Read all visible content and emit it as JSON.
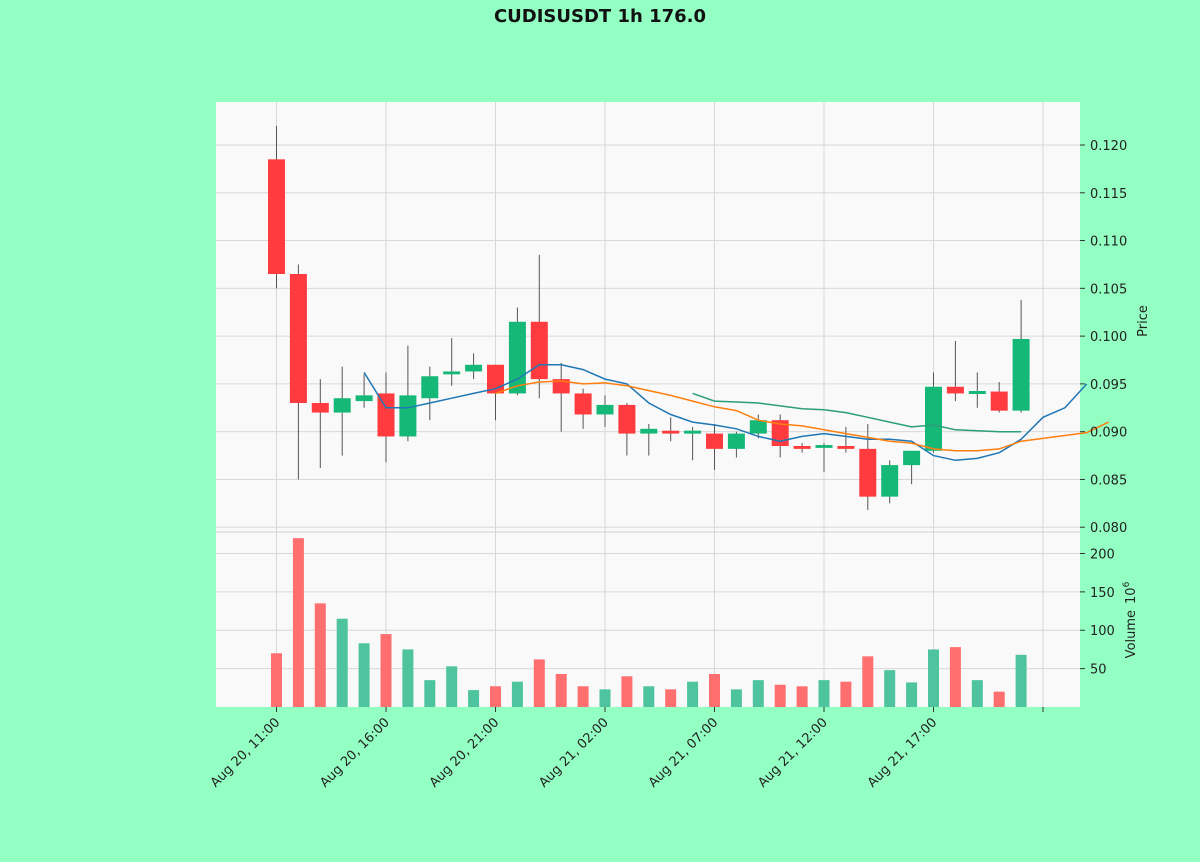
{
  "chart_data": {
    "type": "candlestick",
    "title": "CUDISUSDT 1h 176.0",
    "ylabel_price": "Price",
    "ylabel_volume": "Volume",
    "ylabel_volume_exponent": "10",
    "ylabel_volume_power": "6",
    "price_ylim": [
      0.0795,
      0.1245
    ],
    "volume_ylim": [
      0,
      228
    ],
    "price_ticks": [
      "0.080",
      "0.085",
      "0.090",
      "0.095",
      "0.100",
      "0.105",
      "0.110",
      "0.115",
      "0.120"
    ],
    "volume_ticks": [
      "50",
      "100",
      "150",
      "200"
    ],
    "x_tick_labels": [
      {
        "index": 0,
        "label": "Aug 20, 11:00"
      },
      {
        "index": 5,
        "label": "Aug 20, 16:00"
      },
      {
        "index": 10,
        "label": "Aug 20, 21:00"
      },
      {
        "index": 15,
        "label": "Aug 21, 02:00"
      },
      {
        "index": 20,
        "label": "Aug 21, 07:00"
      },
      {
        "index": 25,
        "label": "Aug 21, 12:00"
      },
      {
        "index": 30,
        "label": "Aug 21, 17:00"
      },
      {
        "index": 35,
        "label": ""
      }
    ],
    "colors": {
      "up": "#16b877",
      "down": "#ff3b3f",
      "up_volume": "#4dc49e",
      "down_volume": "#ff6f6f",
      "ma_short": "#1f77b4",
      "ma_mid": "#ff7f0e",
      "ma_long": "#2b9d7a",
      "page_bg": "#93ffc3",
      "plot_bg": "#f9f9f9",
      "grid": "#d8d8d8"
    },
    "candles": [
      {
        "o": 0.1185,
        "h": 0.122,
        "l": 0.105,
        "c": 0.1065,
        "v": 70
      },
      {
        "o": 0.1065,
        "h": 0.1075,
        "l": 0.085,
        "c": 0.093,
        "v": 220
      },
      {
        "o": 0.093,
        "h": 0.0955,
        "l": 0.0862,
        "c": 0.092,
        "v": 135
      },
      {
        "o": 0.092,
        "h": 0.0968,
        "l": 0.0875,
        "c": 0.0935,
        "v": 115
      },
      {
        "o": 0.0932,
        "h": 0.096,
        "l": 0.0925,
        "c": 0.0938,
        "v": 83
      },
      {
        "o": 0.094,
        "h": 0.0962,
        "l": 0.0868,
        "c": 0.0895,
        "v": 95
      },
      {
        "o": 0.0895,
        "h": 0.099,
        "l": 0.089,
        "c": 0.0938,
        "v": 75
      },
      {
        "o": 0.0935,
        "h": 0.0968,
        "l": 0.0912,
        "c": 0.0958,
        "v": 35
      },
      {
        "o": 0.096,
        "h": 0.0998,
        "l": 0.0948,
        "c": 0.0963,
        "v": 53
      },
      {
        "o": 0.0963,
        "h": 0.0982,
        "l": 0.0955,
        "c": 0.097,
        "v": 22
      },
      {
        "o": 0.097,
        "h": 0.097,
        "l": 0.0912,
        "c": 0.094,
        "v": 27
      },
      {
        "o": 0.094,
        "h": 0.103,
        "l": 0.0938,
        "c": 0.1015,
        "v": 33
      },
      {
        "o": 0.1015,
        "h": 0.1085,
        "l": 0.0935,
        "c": 0.0955,
        "v": 62
      },
      {
        "o": 0.0955,
        "h": 0.0972,
        "l": 0.09,
        "c": 0.094,
        "v": 43
      },
      {
        "o": 0.094,
        "h": 0.0945,
        "l": 0.0903,
        "c": 0.0918,
        "v": 27
      },
      {
        "o": 0.0918,
        "h": 0.0938,
        "l": 0.0905,
        "c": 0.0928,
        "v": 23
      },
      {
        "o": 0.0928,
        "h": 0.093,
        "l": 0.0875,
        "c": 0.0898,
        "v": 40
      },
      {
        "o": 0.0898,
        "h": 0.0908,
        "l": 0.0875,
        "c": 0.0903,
        "v": 27
      },
      {
        "o": 0.0901,
        "h": 0.0915,
        "l": 0.089,
        "c": 0.0898,
        "v": 23
      },
      {
        "o": 0.0899,
        "h": 0.0905,
        "l": 0.087,
        "c": 0.09,
        "v": 33
      },
      {
        "o": 0.0898,
        "h": 0.0908,
        "l": 0.086,
        "c": 0.0882,
        "v": 43
      },
      {
        "o": 0.0882,
        "h": 0.09,
        "l": 0.0873,
        "c": 0.0898,
        "v": 23
      },
      {
        "o": 0.0898,
        "h": 0.0918,
        "l": 0.0893,
        "c": 0.0912,
        "v": 35
      },
      {
        "o": 0.0912,
        "h": 0.0918,
        "l": 0.0873,
        "c": 0.0885,
        "v": 29
      },
      {
        "o": 0.0885,
        "h": 0.0888,
        "l": 0.0878,
        "c": 0.0882,
        "v": 27
      },
      {
        "o": 0.0883,
        "h": 0.0888,
        "l": 0.0858,
        "c": 0.0886,
        "v": 35
      },
      {
        "o": 0.0885,
        "h": 0.0905,
        "l": 0.0878,
        "c": 0.0882,
        "v": 33
      },
      {
        "o": 0.0882,
        "h": 0.0908,
        "l": 0.0818,
        "c": 0.0832,
        "v": 66
      },
      {
        "o": 0.0832,
        "h": 0.087,
        "l": 0.0825,
        "c": 0.0865,
        "v": 48
      },
      {
        "o": 0.0865,
        "h": 0.088,
        "l": 0.0845,
        "c": 0.088,
        "v": 32
      },
      {
        "o": 0.088,
        "h": 0.0962,
        "l": 0.0878,
        "c": 0.0947,
        "v": 75
      },
      {
        "o": 0.0947,
        "h": 0.0995,
        "l": 0.0932,
        "c": 0.094,
        "v": 78
      },
      {
        "o": 0.094,
        "h": 0.0962,
        "l": 0.0925,
        "c": 0.0942,
        "v": 35
      },
      {
        "o": 0.0942,
        "h": 0.0952,
        "l": 0.092,
        "c": 0.0922,
        "v": 20
      },
      {
        "o": 0.0922,
        "h": 0.1038,
        "l": 0.092,
        "c": 0.0997,
        "v": 68
      }
    ],
    "moving_averages": [
      {
        "key": "ma_short",
        "start": 4,
        "values": [
          0.0962,
          0.0925,
          0.0925,
          0.093,
          0.0935,
          0.094,
          0.0945,
          0.0955,
          0.097,
          0.097,
          0.0965,
          0.0955,
          0.095,
          0.093,
          0.0918,
          0.091,
          0.0907,
          0.0903,
          0.0895,
          0.089,
          0.0895,
          0.0898,
          0.0895,
          0.0892,
          0.0892,
          0.089,
          0.0875,
          0.087,
          0.0872,
          0.0878,
          0.0892,
          0.0915,
          0.0925,
          0.095
        ]
      },
      {
        "key": "ma_mid",
        "start": 10,
        "values": [
          0.094,
          0.0948,
          0.0952,
          0.0953,
          0.095,
          0.0951,
          0.0948,
          0.0943,
          0.0938,
          0.0932,
          0.0926,
          0.0922,
          0.0912,
          0.0908,
          0.0906,
          0.0902,
          0.0898,
          0.0894,
          0.089,
          0.0888,
          0.0882,
          0.088,
          0.088,
          0.0882,
          0.089,
          0.0893,
          0.0896,
          0.0899,
          0.091
        ]
      },
      {
        "key": "ma_long",
        "start": 19,
        "values": [
          0.094,
          0.0932,
          0.0931,
          0.093,
          0.0927,
          0.0924,
          0.0923,
          0.092,
          0.0915,
          0.091,
          0.0905,
          0.0907,
          0.0902,
          0.0901,
          0.09,
          0.09
        ]
      }
    ]
  }
}
